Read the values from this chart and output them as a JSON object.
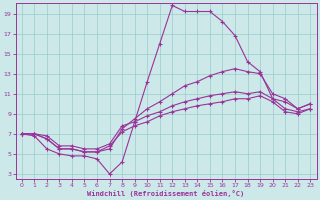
{
  "xlabel": "Windchill (Refroidissement éolien,°C)",
  "bg_color": "#cce8e8",
  "line_color": "#993399",
  "grid_color": "#99cccc",
  "xlim": [
    -0.5,
    23.5
  ],
  "ylim": [
    2.5,
    20
  ],
  "xticks": [
    0,
    1,
    2,
    3,
    4,
    5,
    6,
    7,
    8,
    9,
    10,
    11,
    12,
    13,
    14,
    15,
    16,
    17,
    18,
    19,
    20,
    21,
    22,
    23
  ],
  "yticks": [
    3,
    5,
    7,
    9,
    11,
    13,
    15,
    17,
    19
  ],
  "line1_x": [
    0,
    1,
    2,
    3,
    4,
    5,
    6,
    7,
    8,
    9,
    10,
    11,
    12,
    13,
    14,
    15,
    16,
    17,
    18,
    19,
    20,
    21,
    22,
    23
  ],
  "line1_y": [
    7,
    6.8,
    5.5,
    5.0,
    4.8,
    4.8,
    4.5,
    3.0,
    4.2,
    8.2,
    12.2,
    16.0,
    19.8,
    19.2,
    19.2,
    19.2,
    18.2,
    16.8,
    14.2,
    13.2,
    10.5,
    10.2,
    9.5,
    10.0
  ],
  "line2_x": [
    0,
    1,
    2,
    3,
    4,
    5,
    6,
    7,
    8,
    9,
    10,
    11,
    12,
    13,
    14,
    15,
    16,
    17,
    18,
    19,
    20,
    21,
    22,
    23
  ],
  "line2_y": [
    7,
    7,
    6.5,
    5.5,
    5.5,
    5.2,
    5.2,
    5.5,
    7.5,
    8.5,
    9.5,
    10.2,
    11.0,
    11.8,
    12.2,
    12.8,
    13.2,
    13.5,
    13.2,
    13.0,
    11.0,
    10.5,
    9.5,
    10.0
  ],
  "line3_x": [
    0,
    1,
    2,
    3,
    4,
    5,
    6,
    7,
    8,
    9,
    10,
    11,
    12,
    13,
    14,
    15,
    16,
    17,
    18,
    19,
    20,
    21,
    22,
    23
  ],
  "line3_y": [
    7,
    7,
    6.8,
    5.8,
    5.8,
    5.5,
    5.5,
    6.0,
    7.8,
    8.2,
    8.8,
    9.2,
    9.8,
    10.2,
    10.5,
    10.8,
    11.0,
    11.2,
    11.0,
    11.2,
    10.5,
    9.5,
    9.2,
    9.5
  ],
  "line4_x": [
    0,
    1,
    2,
    3,
    4,
    5,
    6,
    7,
    8,
    9,
    10,
    11,
    12,
    13,
    14,
    15,
    16,
    17,
    18,
    19,
    20,
    21,
    22,
    23
  ],
  "line4_y": [
    7,
    7,
    6.5,
    5.5,
    5.5,
    5.2,
    5.2,
    5.8,
    7.2,
    7.8,
    8.2,
    8.8,
    9.2,
    9.5,
    9.8,
    10.0,
    10.2,
    10.5,
    10.5,
    10.8,
    10.2,
    9.2,
    9.0,
    9.5
  ]
}
